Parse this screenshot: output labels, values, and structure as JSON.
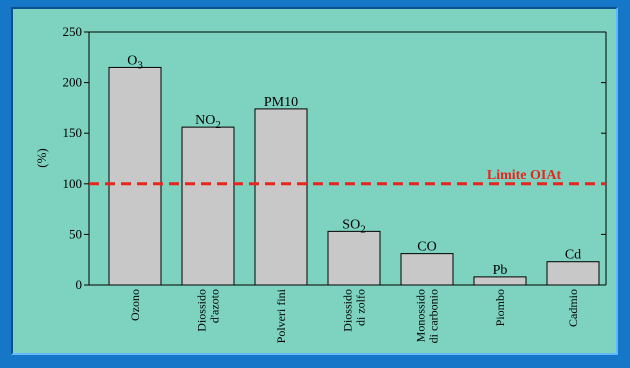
{
  "chart_data": {
    "type": "bar",
    "ylabel": "(%)",
    "ylim": [
      0,
      250
    ],
    "yticks": [
      0,
      50,
      100,
      150,
      200,
      250
    ],
    "categories": [
      [
        "Ozono"
      ],
      [
        "Diossido",
        "d'azoto"
      ],
      [
        "Polveri fini"
      ],
      [
        "Diossido",
        "di zolfo"
      ],
      [
        "Monossido",
        "di carbonio"
      ],
      [
        "Piombo"
      ],
      [
        "Cadmio"
      ]
    ],
    "bar_labels": [
      {
        "main": "O",
        "sub": "3"
      },
      {
        "main": "NO",
        "sub": "2"
      },
      {
        "main": "PM10",
        "sub": ""
      },
      {
        "main": "SO",
        "sub": "2"
      },
      {
        "main": "CO",
        "sub": ""
      },
      {
        "main": "Pb",
        "sub": ""
      },
      {
        "main": "Cd",
        "sub": ""
      }
    ],
    "values": [
      215,
      156,
      174,
      53,
      31,
      8,
      23
    ],
    "reference_line": {
      "value": 100,
      "label": "Limite OIAt",
      "color": "#e8251c"
    },
    "bar_color": "#c8c8c8",
    "background_color": "#7dd3c0",
    "frame_color": "#1677c9",
    "grid": false
  }
}
